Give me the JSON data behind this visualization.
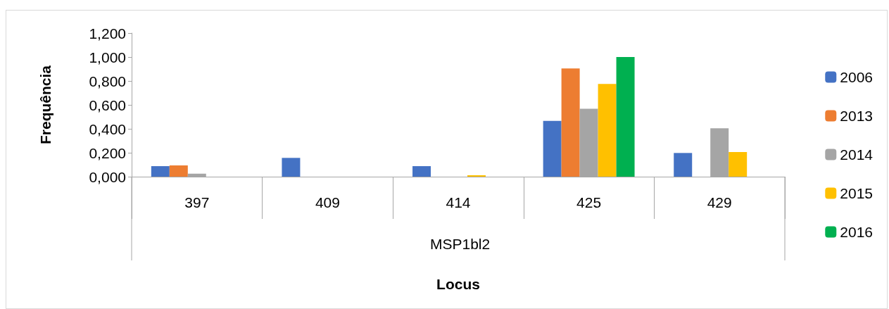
{
  "chart_data": {
    "type": "bar",
    "xlabel": "Locus",
    "ylabel": "Frequência",
    "categories": [
      "397",
      "409",
      "414",
      "425",
      "429"
    ],
    "annotations": [
      "MSP1bl2"
    ],
    "series": [
      {
        "name": "2006",
        "color": "#4472c4",
        "values": [
          0.088,
          0.157,
          0.088,
          0.466,
          0.198
        ]
      },
      {
        "name": "2013",
        "color": "#ed7d31",
        "values": [
          0.094,
          0,
          0,
          0.904,
          0
        ]
      },
      {
        "name": "2014",
        "color": "#a5a5a5",
        "values": [
          0.025,
          0,
          0,
          0.567,
          0.404
        ]
      },
      {
        "name": "2015",
        "color": "#ffc000",
        "values": [
          0,
          0,
          0.012,
          0.775,
          0.206
        ]
      },
      {
        "name": "2016",
        "color": "#00b050",
        "values": [
          0,
          0,
          0,
          1.0,
          0
        ]
      }
    ],
    "ylim": [
      0,
      1.2
    ],
    "yticks": [
      {
        "value": 0,
        "label": "0,000"
      },
      {
        "value": 0.2,
        "label": "0,200"
      },
      {
        "value": 0.4,
        "label": "0,400"
      },
      {
        "value": 0.6,
        "label": "0,600"
      },
      {
        "value": 0.8,
        "label": "0,800"
      },
      {
        "value": 1.0,
        "label": "1,000"
      },
      {
        "value": 1.2,
        "label": "1,200"
      }
    ],
    "grid": false,
    "legend": "right"
  }
}
